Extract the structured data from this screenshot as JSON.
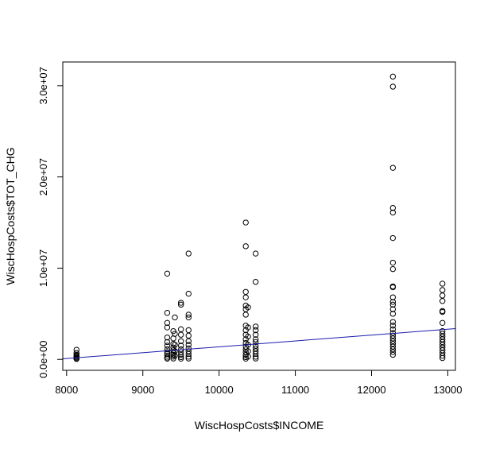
{
  "chart_data": {
    "type": "scatter",
    "title": "",
    "xlabel": "WiscHospCosts$INCOME",
    "ylabel": "WiscHospCosts$TOT_CHG",
    "xlim": [
      7950,
      13100
    ],
    "ylim": [
      -1200000,
      32600000
    ],
    "x_ticks": [
      8000,
      9000,
      10000,
      11000,
      12000,
      13000
    ],
    "x_tick_labels": [
      "8000",
      "9000",
      "10000",
      "11000",
      "12000",
      "13000"
    ],
    "y_ticks": [
      0,
      10000000,
      20000000,
      30000000
    ],
    "y_tick_labels": [
      "0.0e+00",
      "1.0e+07",
      "2.0e+07",
      "3.0e+07"
    ],
    "grid": false,
    "marker_color": "#000000",
    "line_color": "#1a1aaa",
    "regression_line": {
      "x": [
        7950,
        13100
      ],
      "y": [
        60000,
        3370000
      ]
    },
    "series": [
      {
        "points": [
          [
            8130,
            1050000
          ],
          [
            8130,
            700000
          ],
          [
            8130,
            500000
          ],
          [
            8130,
            400000
          ],
          [
            8130,
            300000
          ],
          [
            8130,
            200000
          ],
          [
            8130,
            100000
          ],
          [
            8130,
            50000
          ],
          [
            9320,
            9400000
          ],
          [
            9320,
            5100000
          ],
          [
            9320,
            4000000
          ],
          [
            9320,
            3500000
          ],
          [
            9320,
            2400000
          ],
          [
            9320,
            1900000
          ],
          [
            9320,
            1500000
          ],
          [
            9320,
            1100000
          ],
          [
            9320,
            800000
          ],
          [
            9320,
            600000
          ],
          [
            9320,
            400000
          ],
          [
            9320,
            200000
          ],
          [
            9320,
            80000
          ],
          [
            9400,
            3100000
          ],
          [
            9400,
            2300000
          ],
          [
            9400,
            1700000
          ],
          [
            9400,
            1300000
          ],
          [
            9400,
            1000000
          ],
          [
            9400,
            700000
          ],
          [
            9400,
            500000
          ],
          [
            9400,
            300000
          ],
          [
            9400,
            100000
          ],
          [
            9420,
            4600000
          ],
          [
            9420,
            2800000
          ],
          [
            9420,
            1600000
          ],
          [
            9420,
            900000
          ],
          [
            9420,
            400000
          ],
          [
            9500,
            6200000
          ],
          [
            9500,
            6000000
          ],
          [
            9500,
            3300000
          ],
          [
            9500,
            2700000
          ],
          [
            9500,
            2000000
          ],
          [
            9500,
            1500000
          ],
          [
            9500,
            1100000
          ],
          [
            9500,
            800000
          ],
          [
            9500,
            500000
          ],
          [
            9500,
            250000
          ],
          [
            9500,
            80000
          ],
          [
            9600,
            11600000
          ],
          [
            9600,
            7200000
          ],
          [
            9600,
            4900000
          ],
          [
            9600,
            4600000
          ],
          [
            9600,
            3200000
          ],
          [
            9600,
            2600000
          ],
          [
            9600,
            2000000
          ],
          [
            9600,
            1600000
          ],
          [
            9600,
            1200000
          ],
          [
            9600,
            900000
          ],
          [
            9600,
            600000
          ],
          [
            9600,
            300000
          ],
          [
            9600,
            100000
          ],
          [
            10350,
            15000000
          ],
          [
            10350,
            12400000
          ],
          [
            10350,
            7400000
          ],
          [
            10350,
            6800000
          ],
          [
            10350,
            5900000
          ],
          [
            10350,
            5500000
          ],
          [
            10350,
            4900000
          ],
          [
            10350,
            3700000
          ],
          [
            10350,
            3200000
          ],
          [
            10350,
            2700000
          ],
          [
            10350,
            2200000
          ],
          [
            10350,
            1800000
          ],
          [
            10350,
            1400000
          ],
          [
            10350,
            1100000
          ],
          [
            10350,
            800000
          ],
          [
            10350,
            500000
          ],
          [
            10350,
            250000
          ],
          [
            10350,
            80000
          ],
          [
            10380,
            5700000
          ],
          [
            10380,
            3500000
          ],
          [
            10380,
            2500000
          ],
          [
            10380,
            1600000
          ],
          [
            10380,
            900000
          ],
          [
            10380,
            300000
          ],
          [
            10480,
            11600000
          ],
          [
            10480,
            8500000
          ],
          [
            10480,
            3600000
          ],
          [
            10480,
            3200000
          ],
          [
            10480,
            2700000
          ],
          [
            10480,
            2200000
          ],
          [
            10480,
            1900000
          ],
          [
            10480,
            1500000
          ],
          [
            10480,
            1200000
          ],
          [
            10480,
            900000
          ],
          [
            10480,
            600000
          ],
          [
            10480,
            300000
          ],
          [
            10480,
            100000
          ],
          [
            12280,
            31000000
          ],
          [
            12280,
            29900000
          ],
          [
            12280,
            21000000
          ],
          [
            12280,
            16600000
          ],
          [
            12280,
            16100000
          ],
          [
            12280,
            13300000
          ],
          [
            12280,
            10600000
          ],
          [
            12280,
            9900000
          ],
          [
            12280,
            8000000
          ],
          [
            12280,
            7900000
          ],
          [
            12280,
            6800000
          ],
          [
            12280,
            6300000
          ],
          [
            12280,
            6000000
          ],
          [
            12280,
            5500000
          ],
          [
            12280,
            5000000
          ],
          [
            12280,
            4100000
          ],
          [
            12280,
            3700000
          ],
          [
            12280,
            3300000
          ],
          [
            12280,
            2900000
          ],
          [
            12280,
            2600000
          ],
          [
            12280,
            2300000
          ],
          [
            12280,
            2000000
          ],
          [
            12280,
            1700000
          ],
          [
            12280,
            1400000
          ],
          [
            12280,
            1100000
          ],
          [
            12280,
            800000
          ],
          [
            12280,
            500000
          ],
          [
            12930,
            8300000
          ],
          [
            12930,
            7600000
          ],
          [
            12930,
            7000000
          ],
          [
            12930,
            6400000
          ],
          [
            12930,
            5300000
          ],
          [
            12930,
            5200000
          ],
          [
            12930,
            4000000
          ],
          [
            12930,
            3100000
          ],
          [
            12930,
            2800000
          ],
          [
            12930,
            2500000
          ],
          [
            12930,
            2200000
          ],
          [
            12930,
            1900000
          ],
          [
            12930,
            1600000
          ],
          [
            12930,
            1300000
          ],
          [
            12930,
            1000000
          ],
          [
            12930,
            700000
          ],
          [
            12930,
            400000
          ],
          [
            12930,
            150000
          ]
        ]
      }
    ]
  }
}
